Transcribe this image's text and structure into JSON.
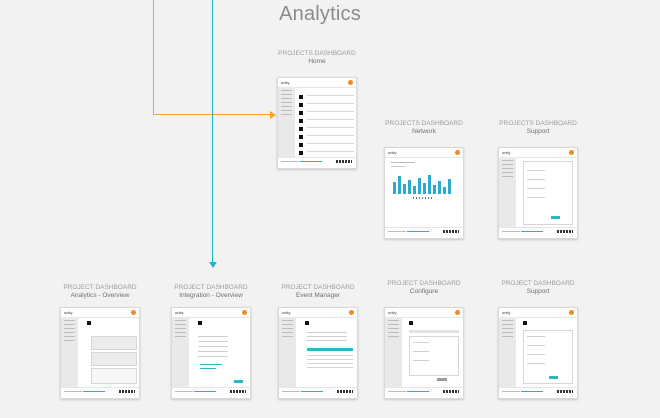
{
  "heading": "Analytics",
  "thumb_brand": "unity",
  "nodes": {
    "home": {
      "caption": "PROJECTS DASHBOARD",
      "title": "Home"
    },
    "network": {
      "caption": "PROJECTS DASHBOARD",
      "title": "Network"
    },
    "support_top": {
      "caption": "PROJECTS DASHBOARD",
      "title": "Support"
    },
    "analytics_overview": {
      "caption": "PROJECT DASHBOARD",
      "title": "Analytics - Overview"
    },
    "integration_overview": {
      "caption": "PROJECT DASHBOARD",
      "title": "Integration - Overview"
    },
    "event_manager": {
      "caption": "PROJECT DASHBOARD",
      "title": "Event Manager"
    },
    "configure": {
      "caption": "PROJECT DASHBOARD",
      "title": "Configure"
    },
    "support_bottom": {
      "caption": "PROJECT DASHBOARD",
      "title": "Support"
    }
  },
  "colors": {
    "background": "#f2f2f2",
    "orange_connector": "#f5a623",
    "teal_connector": "#1eb7c9",
    "accent": "#2aa9d3"
  }
}
